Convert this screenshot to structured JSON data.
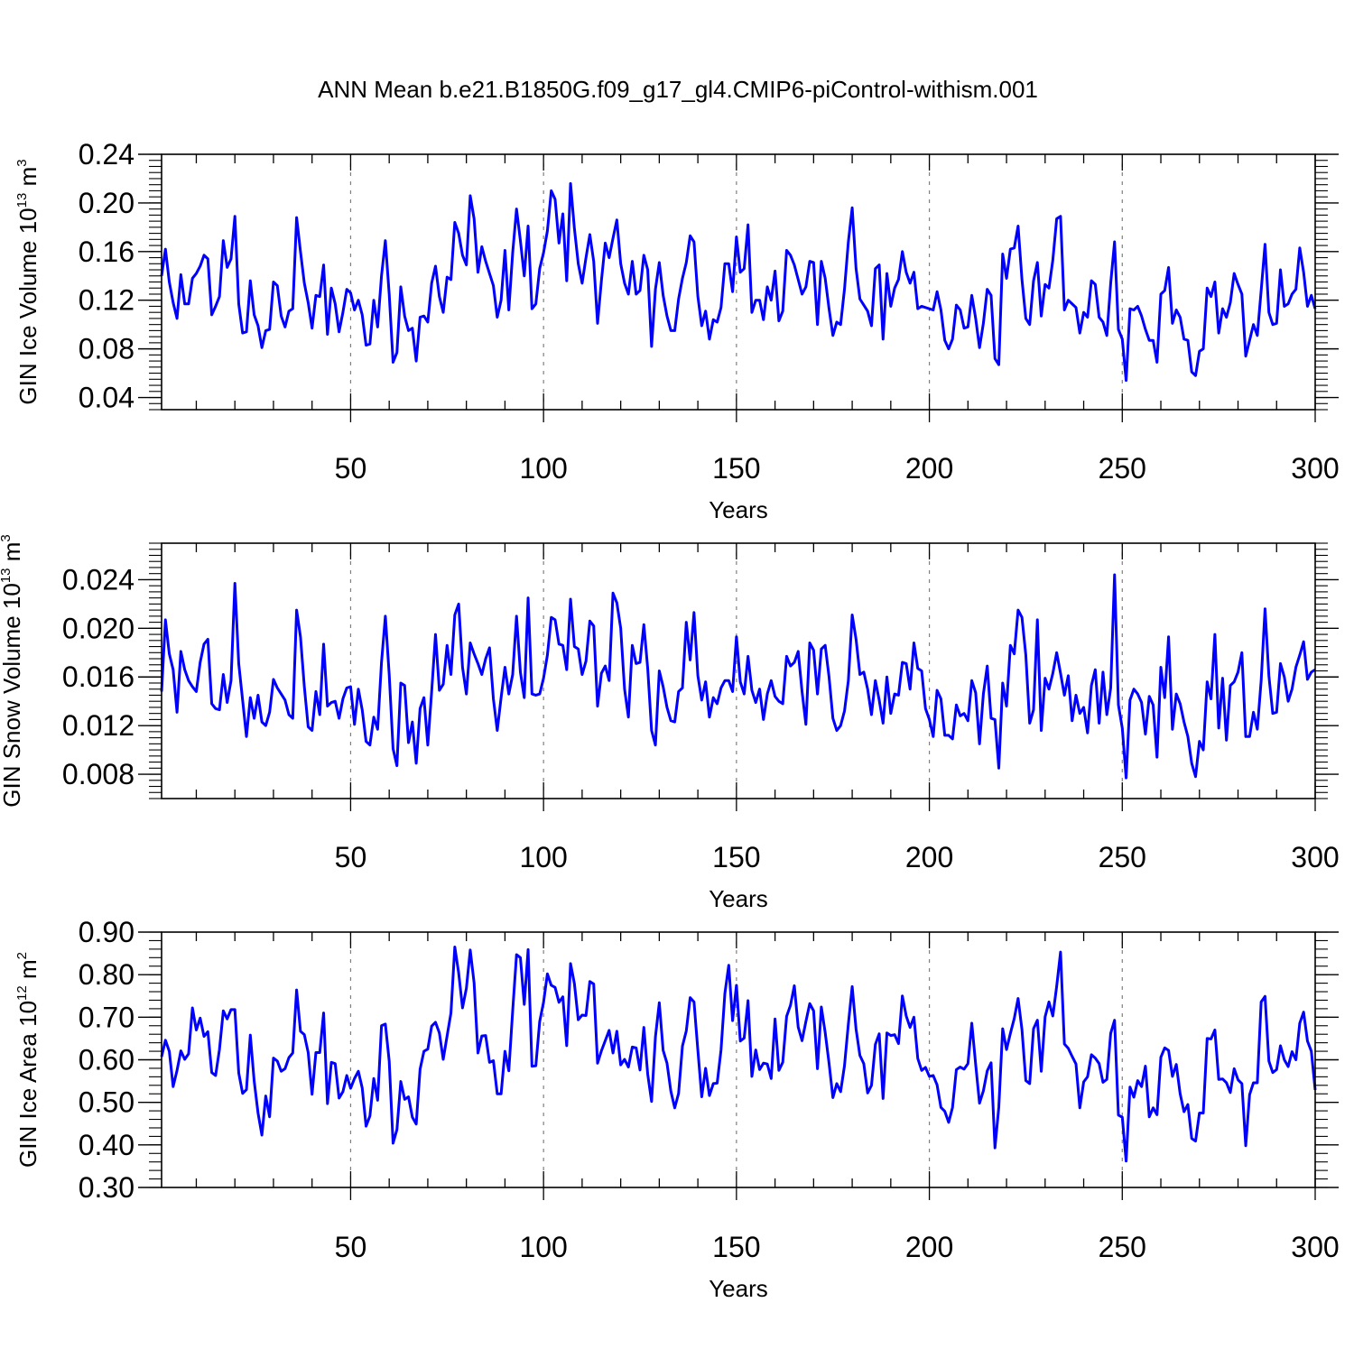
{
  "title": "ANN Mean b.e21.B1850G.f09_g17_gl4.CMIP6-piControl-withism.001",
  "colors": {
    "line": "#0000ff",
    "axis": "#000000",
    "gridline": "#808080"
  },
  "chart_data": [
    {
      "type": "line",
      "xlabel": "Years",
      "ylabel": {
        "prefix": "GIN Ice Volume 10",
        "exp1": "13",
        "unit": " m",
        "exp2": "3"
      },
      "xlim": [
        1,
        300
      ],
      "ylim": [
        0.03,
        0.24
      ],
      "xticks": [
        50,
        100,
        150,
        200,
        250,
        300
      ],
      "yticks": [
        0.04,
        0.08,
        0.12,
        0.16,
        0.2,
        0.24
      ],
      "ytick_labels": [
        "0.04",
        "0.08",
        "0.12",
        "0.16",
        "0.20",
        "0.24"
      ],
      "xgrid": "dashed at 50, 100, 150, 200, 250",
      "x_start": 1,
      "values": [
        0.14,
        0.162,
        0.135,
        0.118,
        0.105,
        0.141,
        0.117,
        0.117,
        0.138,
        0.142,
        0.148,
        0.157,
        0.154,
        0.108,
        0.115,
        0.123,
        0.169,
        0.147,
        0.154,
        0.189,
        0.117,
        0.093,
        0.094,
        0.136,
        0.108,
        0.099,
        0.081,
        0.095,
        0.096,
        0.135,
        0.132,
        0.107,
        0.098,
        0.111,
        0.113,
        0.188,
        0.16,
        0.134,
        0.118,
        0.097,
        0.124,
        0.123,
        0.149,
        0.092,
        0.13,
        0.117,
        0.094,
        0.11,
        0.129,
        0.126,
        0.112,
        0.12,
        0.108,
        0.083,
        0.084,
        0.12,
        0.098,
        0.14,
        0.169,
        0.125,
        0.069,
        0.077,
        0.131,
        0.107,
        0.095,
        0.097,
        0.07,
        0.106,
        0.107,
        0.102,
        0.134,
        0.148,
        0.123,
        0.11,
        0.139,
        0.137,
        0.184,
        0.175,
        0.157,
        0.149,
        0.206,
        0.187,
        0.143,
        0.164,
        0.152,
        0.142,
        0.132,
        0.106,
        0.12,
        0.161,
        0.112,
        0.159,
        0.195,
        0.169,
        0.14,
        0.181,
        0.113,
        0.117,
        0.146,
        0.159,
        0.177,
        0.21,
        0.203,
        0.167,
        0.191,
        0.136,
        0.216,
        0.179,
        0.15,
        0.134,
        0.155,
        0.174,
        0.152,
        0.101,
        0.136,
        0.167,
        0.155,
        0.171,
        0.186,
        0.15,
        0.134,
        0.125,
        0.152,
        0.125,
        0.128,
        0.157,
        0.145,
        0.082,
        0.129,
        0.151,
        0.124,
        0.107,
        0.095,
        0.095,
        0.121,
        0.138,
        0.151,
        0.173,
        0.168,
        0.123,
        0.099,
        0.111,
        0.088,
        0.104,
        0.102,
        0.114,
        0.15,
        0.15,
        0.127,
        0.172,
        0.143,
        0.146,
        0.182,
        0.11,
        0.12,
        0.12,
        0.104,
        0.131,
        0.12,
        0.144,
        0.103,
        0.111,
        0.161,
        0.157,
        0.149,
        0.137,
        0.125,
        0.131,
        0.152,
        0.151,
        0.1,
        0.152,
        0.138,
        0.113,
        0.091,
        0.102,
        0.1,
        0.129,
        0.168,
        0.196,
        0.146,
        0.121,
        0.116,
        0.111,
        0.099,
        0.146,
        0.149,
        0.088,
        0.142,
        0.115,
        0.13,
        0.137,
        0.16,
        0.143,
        0.134,
        0.143,
        0.113,
        0.115,
        0.114,
        0.113,
        0.112,
        0.127,
        0.112,
        0.087,
        0.08,
        0.088,
        0.116,
        0.112,
        0.097,
        0.098,
        0.124,
        0.105,
        0.081,
        0.101,
        0.129,
        0.124,
        0.072,
        0.067,
        0.158,
        0.138,
        0.162,
        0.163,
        0.181,
        0.137,
        0.105,
        0.1,
        0.136,
        0.151,
        0.107,
        0.133,
        0.13,
        0.153,
        0.187,
        0.189,
        0.112,
        0.12,
        0.117,
        0.114,
        0.093,
        0.11,
        0.106,
        0.136,
        0.133,
        0.106,
        0.102,
        0.091,
        0.134,
        0.168,
        0.096,
        0.088,
        0.054,
        0.113,
        0.112,
        0.115,
        0.107,
        0.096,
        0.087,
        0.087,
        0.069,
        0.125,
        0.128,
        0.147,
        0.101,
        0.112,
        0.106,
        0.088,
        0.087,
        0.061,
        0.058,
        0.078,
        0.08,
        0.13,
        0.123,
        0.135,
        0.093,
        0.113,
        0.106,
        0.118,
        0.142,
        0.133,
        0.125,
        0.074,
        0.087,
        0.1,
        0.091,
        0.128,
        0.166,
        0.11,
        0.1,
        0.101,
        0.145,
        0.115,
        0.117,
        0.125,
        0.129,
        0.163,
        0.143,
        0.115,
        0.124,
        0.113
      ]
    },
    {
      "type": "line",
      "xlabel": "Years",
      "ylabel": {
        "prefix": "GIN Snow Volume 10",
        "exp1": "13",
        "unit": " m",
        "exp2": "3"
      },
      "xlim": [
        1,
        300
      ],
      "ylim": [
        0.006,
        0.027
      ],
      "xticks": [
        50,
        100,
        150,
        200,
        250,
        300
      ],
      "yticks": [
        0.008,
        0.012,
        0.016,
        0.02,
        0.024
      ],
      "ytick_labels": [
        "0.008",
        "0.012",
        "0.016",
        "0.020",
        "0.024"
      ],
      "xgrid": "dashed at 50, 100, 150, 200, 250",
      "x_start": 1,
      "values": [
        0.0148,
        0.0207,
        0.0179,
        0.0166,
        0.0131,
        0.0181,
        0.0166,
        0.0157,
        0.0152,
        0.0148,
        0.0172,
        0.0187,
        0.0191,
        0.0138,
        0.0134,
        0.0133,
        0.0162,
        0.0139,
        0.0157,
        0.0237,
        0.0171,
        0.0141,
        0.0111,
        0.0143,
        0.0126,
        0.0145,
        0.0123,
        0.012,
        0.0131,
        0.0158,
        0.0151,
        0.0146,
        0.0141,
        0.0129,
        0.0126,
        0.0215,
        0.0193,
        0.0152,
        0.0119,
        0.0116,
        0.0148,
        0.0129,
        0.0187,
        0.0136,
        0.0139,
        0.014,
        0.0126,
        0.0142,
        0.0151,
        0.0152,
        0.0121,
        0.015,
        0.0133,
        0.0107,
        0.0104,
        0.0127,
        0.0117,
        0.0172,
        0.021,
        0.0162,
        0.0101,
        0.0087,
        0.0155,
        0.0153,
        0.0106,
        0.0123,
        0.0089,
        0.0134,
        0.0143,
        0.0104,
        0.0148,
        0.0195,
        0.0149,
        0.0154,
        0.0186,
        0.0162,
        0.0211,
        0.022,
        0.0168,
        0.0146,
        0.0188,
        0.0179,
        0.0171,
        0.0162,
        0.0175,
        0.0184,
        0.0142,
        0.0116,
        0.0143,
        0.0168,
        0.0146,
        0.0162,
        0.021,
        0.0164,
        0.0143,
        0.0225,
        0.0146,
        0.0145,
        0.0146,
        0.0159,
        0.0178,
        0.0209,
        0.0207,
        0.0187,
        0.0186,
        0.0166,
        0.0224,
        0.0185,
        0.0183,
        0.0162,
        0.0173,
        0.0206,
        0.0202,
        0.0136,
        0.0163,
        0.0169,
        0.0157,
        0.0229,
        0.0221,
        0.02,
        0.015,
        0.0127,
        0.0186,
        0.0171,
        0.0172,
        0.0203,
        0.0167,
        0.0116,
        0.0104,
        0.0165,
        0.0152,
        0.0135,
        0.0124,
        0.0123,
        0.0148,
        0.0151,
        0.0205,
        0.0174,
        0.0213,
        0.0161,
        0.0141,
        0.0156,
        0.0127,
        0.0143,
        0.0138,
        0.0151,
        0.0157,
        0.0157,
        0.0148,
        0.0193,
        0.0156,
        0.0146,
        0.0177,
        0.0149,
        0.0139,
        0.015,
        0.0125,
        0.0146,
        0.0157,
        0.0144,
        0.014,
        0.0138,
        0.0177,
        0.0169,
        0.0172,
        0.0181,
        0.0148,
        0.0121,
        0.0188,
        0.0182,
        0.0146,
        0.0183,
        0.0186,
        0.016,
        0.0126,
        0.0116,
        0.012,
        0.0132,
        0.0157,
        0.0211,
        0.0191,
        0.0162,
        0.0164,
        0.015,
        0.0129,
        0.0157,
        0.0141,
        0.0122,
        0.016,
        0.013,
        0.0146,
        0.0145,
        0.0172,
        0.0171,
        0.015,
        0.0188,
        0.0167,
        0.0165,
        0.0134,
        0.0125,
        0.0111,
        0.0149,
        0.0142,
        0.0112,
        0.0112,
        0.0109,
        0.0137,
        0.0128,
        0.013,
        0.0124,
        0.0157,
        0.0147,
        0.0105,
        0.0146,
        0.0169,
        0.0126,
        0.0125,
        0.0085,
        0.0155,
        0.0136,
        0.0186,
        0.0179,
        0.0215,
        0.0209,
        0.0178,
        0.0122,
        0.0133,
        0.0207,
        0.0116,
        0.0159,
        0.015,
        0.0163,
        0.018,
        0.0163,
        0.0145,
        0.0161,
        0.0124,
        0.0145,
        0.013,
        0.0135,
        0.0114,
        0.0153,
        0.0166,
        0.0122,
        0.0164,
        0.0129,
        0.0151,
        0.0244,
        0.0137,
        0.0118,
        0.0077,
        0.0141,
        0.015,
        0.0146,
        0.0139,
        0.0113,
        0.0144,
        0.0137,
        0.0094,
        0.0168,
        0.0143,
        0.0193,
        0.0117,
        0.0146,
        0.0138,
        0.0123,
        0.0111,
        0.0089,
        0.0078,
        0.0107,
        0.01,
        0.0156,
        0.0142,
        0.0195,
        0.0118,
        0.0159,
        0.0108,
        0.0153,
        0.0156,
        0.0164,
        0.018,
        0.0111,
        0.0111,
        0.0131,
        0.0117,
        0.0157,
        0.0216,
        0.0161,
        0.013,
        0.0131,
        0.0171,
        0.016,
        0.014,
        0.015,
        0.0168,
        0.0178,
        0.0189,
        0.0158,
        0.0164,
        0.0166
      ]
    },
    {
      "type": "line",
      "xlabel": "Years",
      "ylabel": {
        "prefix": "GIN Ice Area 10",
        "exp1": "12",
        "unit": " m",
        "exp2": "2"
      },
      "xlim": [
        1,
        300
      ],
      "ylim": [
        0.3,
        0.9
      ],
      "xticks": [
        50,
        100,
        150,
        200,
        250,
        300
      ],
      "yticks": [
        0.3,
        0.4,
        0.5,
        0.6,
        0.7,
        0.8,
        0.9
      ],
      "ytick_labels": [
        "0.30",
        "0.40",
        "0.50",
        "0.60",
        "0.70",
        "0.80",
        "0.90"
      ],
      "xgrid": "dashed at 50, 100, 150, 200, 250",
      "x_start": 1,
      "values": [
        0.607,
        0.646,
        0.62,
        0.537,
        0.575,
        0.621,
        0.601,
        0.614,
        0.722,
        0.67,
        0.698,
        0.655,
        0.666,
        0.57,
        0.563,
        0.624,
        0.715,
        0.696,
        0.718,
        0.718,
        0.569,
        0.521,
        0.53,
        0.658,
        0.55,
        0.475,
        0.423,
        0.515,
        0.466,
        0.604,
        0.597,
        0.573,
        0.579,
        0.605,
        0.616,
        0.764,
        0.667,
        0.659,
        0.617,
        0.519,
        0.617,
        0.617,
        0.71,
        0.497,
        0.594,
        0.591,
        0.51,
        0.525,
        0.563,
        0.533,
        0.556,
        0.573,
        0.534,
        0.444,
        0.468,
        0.556,
        0.505,
        0.68,
        0.684,
        0.597,
        0.404,
        0.436,
        0.549,
        0.507,
        0.513,
        0.465,
        0.449,
        0.578,
        0.62,
        0.625,
        0.679,
        0.688,
        0.663,
        0.601,
        0.656,
        0.71,
        0.865,
        0.804,
        0.722,
        0.768,
        0.858,
        0.781,
        0.616,
        0.656,
        0.657,
        0.594,
        0.598,
        0.52,
        0.52,
        0.62,
        0.574,
        0.715,
        0.847,
        0.84,
        0.73,
        0.859,
        0.585,
        0.586,
        0.69,
        0.735,
        0.802,
        0.775,
        0.77,
        0.735,
        0.748,
        0.633,
        0.826,
        0.779,
        0.694,
        0.705,
        0.704,
        0.784,
        0.778,
        0.592,
        0.621,
        0.645,
        0.669,
        0.616,
        0.667,
        0.588,
        0.601,
        0.583,
        0.63,
        0.628,
        0.576,
        0.676,
        0.566,
        0.502,
        0.654,
        0.734,
        0.622,
        0.592,
        0.526,
        0.487,
        0.521,
        0.632,
        0.668,
        0.746,
        0.736,
        0.622,
        0.513,
        0.58,
        0.516,
        0.544,
        0.545,
        0.623,
        0.756,
        0.822,
        0.692,
        0.775,
        0.644,
        0.651,
        0.739,
        0.561,
        0.623,
        0.577,
        0.592,
        0.59,
        0.556,
        0.696,
        0.575,
        0.594,
        0.702,
        0.728,
        0.774,
        0.677,
        0.645,
        0.69,
        0.732,
        0.715,
        0.579,
        0.724,
        0.664,
        0.592,
        0.511,
        0.544,
        0.525,
        0.586,
        0.684,
        0.772,
        0.672,
        0.61,
        0.591,
        0.522,
        0.54,
        0.636,
        0.661,
        0.509,
        0.663,
        0.657,
        0.659,
        0.638,
        0.75,
        0.703,
        0.676,
        0.7,
        0.603,
        0.575,
        0.582,
        0.561,
        0.563,
        0.541,
        0.488,
        0.479,
        0.453,
        0.488,
        0.577,
        0.583,
        0.578,
        0.591,
        0.686,
        0.589,
        0.498,
        0.527,
        0.574,
        0.593,
        0.393,
        0.489,
        0.673,
        0.624,
        0.662,
        0.697,
        0.744,
        0.671,
        0.551,
        0.544,
        0.673,
        0.693,
        0.573,
        0.701,
        0.736,
        0.703,
        0.773,
        0.853,
        0.637,
        0.627,
        0.608,
        0.59,
        0.487,
        0.548,
        0.56,
        0.612,
        0.604,
        0.591,
        0.547,
        0.554,
        0.662,
        0.693,
        0.47,
        0.465,
        0.362,
        0.536,
        0.512,
        0.551,
        0.537,
        0.585,
        0.466,
        0.487,
        0.471,
        0.606,
        0.628,
        0.622,
        0.561,
        0.589,
        0.52,
        0.478,
        0.495,
        0.415,
        0.409,
        0.475,
        0.475,
        0.65,
        0.649,
        0.67,
        0.554,
        0.555,
        0.546,
        0.523,
        0.579,
        0.553,
        0.544,
        0.398,
        0.518,
        0.546,
        0.546,
        0.736,
        0.749,
        0.597,
        0.57,
        0.577,
        0.633,
        0.6,
        0.584,
        0.619,
        0.6,
        0.686,
        0.712,
        0.644,
        0.62,
        0.529
      ]
    }
  ]
}
